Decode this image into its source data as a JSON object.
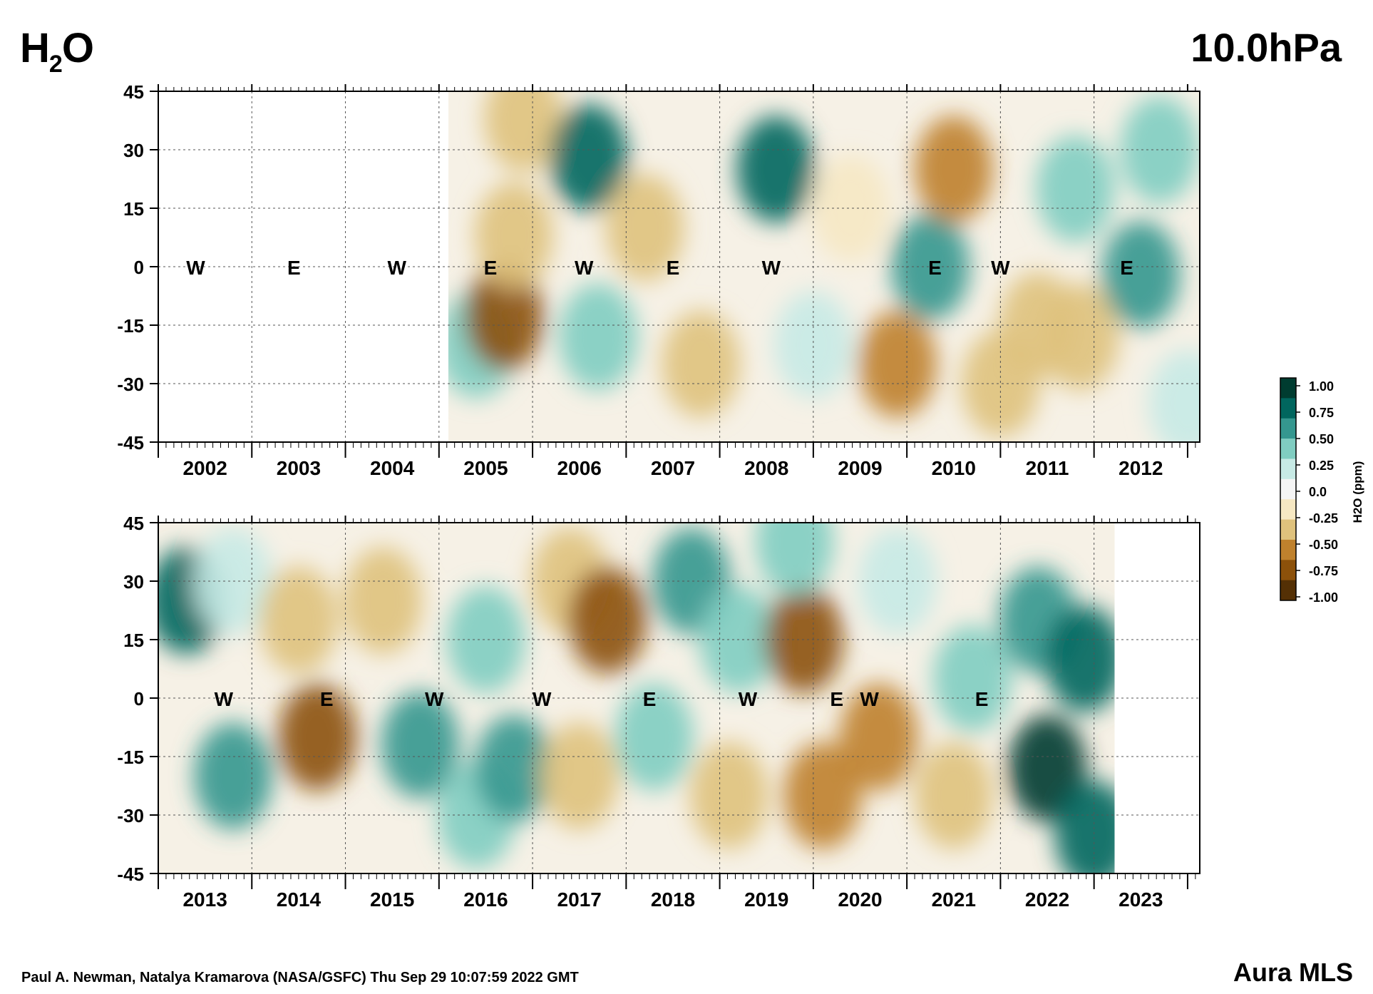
{
  "title": {
    "species_main": "H",
    "species_sub": "2",
    "species_tail": "O",
    "level": "10.0hPa"
  },
  "footer": {
    "credit": "Paul A. Newman, Natalya Kramarova (NASA/GSFC) Thu Sep 29 10:07:59 2022 GMT",
    "instrument": "Aura MLS"
  },
  "colorbar": {
    "label": "H2O (ppm)",
    "ticks": [
      "1.00",
      "0.75",
      "0.50",
      "0.25",
      "0.0",
      "-0.25",
      "-0.50",
      "-0.75",
      "-1.00"
    ],
    "colors": [
      "#003c30",
      "#01665e",
      "#35978f",
      "#80cdc1",
      "#c7eae5",
      "#f5f5f5",
      "#f6e8c3",
      "#dfc27d",
      "#bf812d",
      "#8c510a",
      "#543005"
    ]
  },
  "chart_data": [
    {
      "type": "heatmap",
      "panel": "top",
      "xlabel": "",
      "ylabel": "",
      "x_ticks": [
        "2002",
        "2003",
        "2004",
        "2005",
        "2006",
        "2007",
        "2008",
        "2009",
        "2010",
        "2011",
        "2012"
      ],
      "xlim": [
        2001.5,
        2012.63
      ],
      "y_ticks": [
        "45",
        "30",
        "15",
        "0",
        "-15",
        "-30",
        "-45"
      ],
      "ylim": [
        -45,
        45
      ],
      "data_start": 2004.6,
      "data_end": 2012.63,
      "qbo_labels": [
        {
          "phase": "W",
          "time": 2001.9
        },
        {
          "phase": "E",
          "time": 2002.95
        },
        {
          "phase": "W",
          "time": 2004.05
        },
        {
          "phase": "E",
          "time": 2005.05
        },
        {
          "phase": "W",
          "time": 2006.05
        },
        {
          "phase": "E",
          "time": 2007.0
        },
        {
          "phase": "W",
          "time": 2008.05
        },
        {
          "phase": "E",
          "time": 2009.8
        },
        {
          "phase": "W",
          "time": 2010.5
        },
        {
          "phase": "E",
          "time": 2011.85
        }
      ],
      "anomaly_features": [
        {
          "time": 2004.9,
          "lat": -20,
          "value": 0.45
        },
        {
          "time": 2005.2,
          "lat": -13,
          "value": -0.8
        },
        {
          "time": 2005.3,
          "lat": 8,
          "value": -0.35
        },
        {
          "time": 2005.4,
          "lat": 38,
          "value": -0.3
        },
        {
          "time": 2006.1,
          "lat": 28,
          "value": 0.85
        },
        {
          "time": 2006.2,
          "lat": -18,
          "value": 0.5
        },
        {
          "time": 2006.7,
          "lat": 10,
          "value": -0.3
        },
        {
          "time": 2007.3,
          "lat": -25,
          "value": -0.4
        },
        {
          "time": 2008.1,
          "lat": 25,
          "value": 0.85
        },
        {
          "time": 2008.5,
          "lat": -20,
          "value": 0.3
        },
        {
          "time": 2008.9,
          "lat": 15,
          "value": -0.2
        },
        {
          "time": 2009.4,
          "lat": -25,
          "value": -0.55
        },
        {
          "time": 2009.75,
          "lat": 0,
          "value": 0.55
        },
        {
          "time": 2010.0,
          "lat": 25,
          "value": -0.6
        },
        {
          "time": 2010.5,
          "lat": -30,
          "value": -0.4
        },
        {
          "time": 2010.9,
          "lat": -15,
          "value": -0.35
        },
        {
          "time": 2011.3,
          "lat": 20,
          "value": 0.35
        },
        {
          "time": 2011.35,
          "lat": -18,
          "value": -0.45
        },
        {
          "time": 2012.0,
          "lat": -2,
          "value": 0.65
        },
        {
          "time": 2012.2,
          "lat": 30,
          "value": 0.4
        },
        {
          "time": 2012.5,
          "lat": -35,
          "value": 0.3
        }
      ]
    },
    {
      "type": "heatmap",
      "panel": "bottom",
      "xlabel": "",
      "ylabel": "",
      "x_ticks": [
        "2013",
        "2014",
        "2015",
        "2016",
        "2017",
        "2018",
        "2019",
        "2020",
        "2021",
        "2022",
        "2023"
      ],
      "xlim": [
        2012.5,
        2023.63
      ],
      "y_ticks": [
        "45",
        "30",
        "15",
        "0",
        "-15",
        "-30",
        "-45"
      ],
      "ylim": [
        -45,
        45
      ],
      "data_start": 2012.5,
      "data_end": 2022.72,
      "qbo_labels": [
        {
          "phase": "W",
          "time": 2013.2
        },
        {
          "phase": "E",
          "time": 2014.3
        },
        {
          "phase": "W",
          "time": 2015.45
        },
        {
          "phase": "W",
          "time": 2016.6
        },
        {
          "phase": "E",
          "time": 2017.75
        },
        {
          "phase": "W",
          "time": 2018.8
        },
        {
          "phase": "E",
          "time": 2019.75
        },
        {
          "phase": "W",
          "time": 2020.1
        },
        {
          "phase": "E",
          "time": 2021.3
        }
      ],
      "anomaly_features": [
        {
          "time": 2012.8,
          "lat": 25,
          "value": 0.85
        },
        {
          "time": 2013.3,
          "lat": -20,
          "value": 0.65
        },
        {
          "time": 2013.3,
          "lat": 30,
          "value": 0.3
        },
        {
          "time": 2014.2,
          "lat": -10,
          "value": -0.75
        },
        {
          "time": 2014.0,
          "lat": 20,
          "value": -0.4
        },
        {
          "time": 2014.9,
          "lat": 25,
          "value": -0.45
        },
        {
          "time": 2015.3,
          "lat": -12,
          "value": 0.7
        },
        {
          "time": 2015.9,
          "lat": -30,
          "value": 0.4
        },
        {
          "time": 2016.0,
          "lat": 15,
          "value": 0.35
        },
        {
          "time": 2016.3,
          "lat": -18,
          "value": 0.6
        },
        {
          "time": 2016.9,
          "lat": 30,
          "value": -0.3
        },
        {
          "time": 2017.0,
          "lat": -20,
          "value": -0.3
        },
        {
          "time": 2017.3,
          "lat": 20,
          "value": -0.7
        },
        {
          "time": 2017.8,
          "lat": -10,
          "value": 0.4
        },
        {
          "time": 2018.2,
          "lat": 30,
          "value": 0.6
        },
        {
          "time": 2018.7,
          "lat": 15,
          "value": 0.5
        },
        {
          "time": 2018.6,
          "lat": -25,
          "value": -0.4
        },
        {
          "time": 2019.4,
          "lat": 15,
          "value": -0.8
        },
        {
          "time": 2019.6,
          "lat": -25,
          "value": -0.6
        },
        {
          "time": 2019.3,
          "lat": 40,
          "value": 0.4
        },
        {
          "time": 2020.2,
          "lat": -10,
          "value": -0.5
        },
        {
          "time": 2020.4,
          "lat": 30,
          "value": 0.3
        },
        {
          "time": 2021.0,
          "lat": -25,
          "value": -0.4
        },
        {
          "time": 2021.2,
          "lat": 5,
          "value": 0.5
        },
        {
          "time": 2021.9,
          "lat": 20,
          "value": 0.6
        },
        {
          "time": 2022.0,
          "lat": -18,
          "value": 1.0
        },
        {
          "time": 2022.4,
          "lat": 10,
          "value": 0.9
        },
        {
          "time": 2022.5,
          "lat": -35,
          "value": 0.8
        }
      ]
    }
  ]
}
